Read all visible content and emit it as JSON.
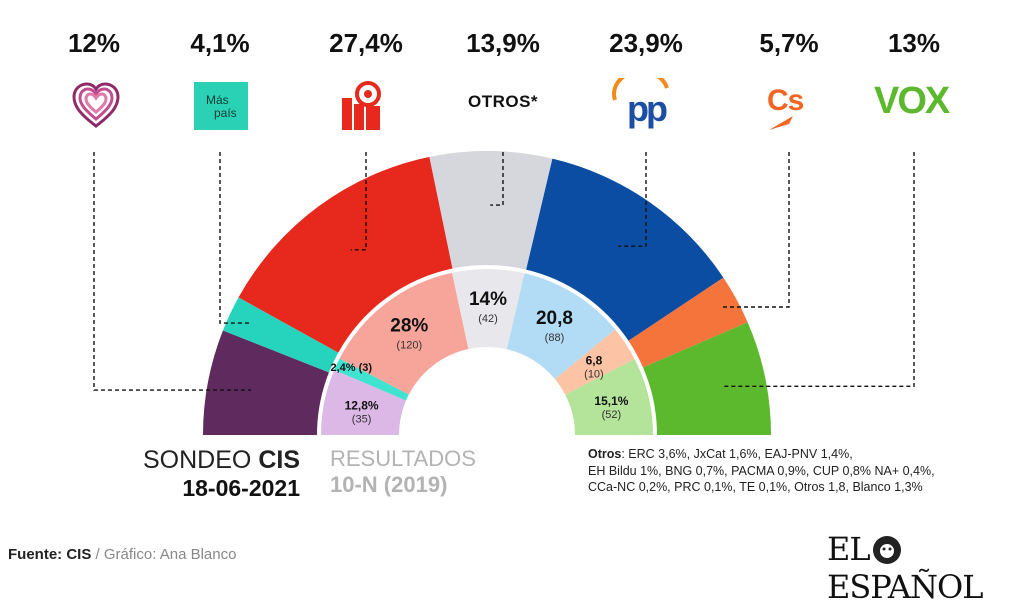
{
  "parties": [
    {
      "id": "podemos",
      "logo": "podemos-heart-icon",
      "pct_label": "12%"
    },
    {
      "id": "mas-pais",
      "logo": "mas-pais-logo",
      "pct_label": "4,1%",
      "logo_text": [
        "Más",
        "país"
      ]
    },
    {
      "id": "psoe",
      "logo": "psoe-rose-icon",
      "pct_label": "27,4%"
    },
    {
      "id": "otros",
      "logo": "otros-label",
      "pct_label": "13,9%",
      "logo_text": "OTROS*"
    },
    {
      "id": "pp",
      "logo": "pp-logo",
      "pct_label": "23,9%",
      "logo_text": "pp"
    },
    {
      "id": "cs",
      "logo": "cs-logo",
      "pct_label": "5,7%",
      "logo_text": "Cs"
    },
    {
      "id": "vox",
      "logo": "vox-logo",
      "pct_label": "13%",
      "logo_text": "VOX"
    }
  ],
  "chart_data": [
    {
      "type": "pie",
      "subtype": "half-donut",
      "title": "SONDEO CIS",
      "date": "18-06-2021",
      "categories": [
        "Podemos",
        "Más País",
        "PSOE",
        "Otros",
        "PP",
        "Cs",
        "Vox"
      ],
      "values": [
        12,
        4.1,
        27.4,
        13.9,
        23.9,
        5.7,
        13
      ],
      "colors": [
        "#5f2b5e",
        "#26d4be",
        "#e7281d",
        "#d6d6dd",
        "#0a4da3",
        "#f4743b",
        "#5cb82d"
      ]
    },
    {
      "type": "pie",
      "subtype": "half-donut",
      "title": "RESULTADOS",
      "subtitle": "10-N (2019)",
      "categories": [
        "Podemos",
        "Más País",
        "PSOE",
        "Otros",
        "PP",
        "Cs",
        "Vox"
      ],
      "values": [
        12.8,
        2.4,
        28,
        14,
        20.8,
        6.8,
        15.1
      ],
      "seats": [
        35,
        3,
        120,
        42,
        88,
        10,
        52
      ],
      "colors": [
        "#dcb8e6",
        "#3fe3d0",
        "#f7a59b",
        "#e8e8ec",
        "#b2dcf5",
        "#fcc4a4",
        "#b4e39a"
      ]
    }
  ],
  "inner_labels": [
    {
      "value": "12,8%",
      "seats": "(35)"
    },
    {
      "value": "2,4%",
      "seats": "(3)"
    },
    {
      "value": "28%",
      "seats": "(120)"
    },
    {
      "value": "14%",
      "seats": "(42)"
    },
    {
      "value": "20,8",
      "seats": "(88)"
    },
    {
      "value": "6,8",
      "seats": "(10)"
    },
    {
      "value": "15,1%",
      "seats": "(52)"
    }
  ],
  "legend": {
    "sondeo_prefix": "SONDEO",
    "sondeo_bold": "CIS",
    "date": "18-06-2021",
    "resultados": "RESULTADOS",
    "election": "10-N (2019)"
  },
  "others_note": {
    "title": "Otros",
    "line1": ": ERC 3,6%, JxCat 1,6%, EAJ-PNV 1,4%,",
    "line2": "EH Bildu 1%,  BNG 0,7%, PACMA 0,9%, CUP 0,8% NA+ 0,4%,",
    "line3": "CCa-NC 0,2%, PRC 0,1%, TE 0,1%, Otros 1,8, Blanco 1,3%"
  },
  "source": {
    "label": "Fuente:",
    "value": "CIS",
    "separator": " / ",
    "credit": "Gráfico: Ana Blanco"
  },
  "brand": {
    "left": "EL",
    "right": "ESPAÑOL"
  }
}
